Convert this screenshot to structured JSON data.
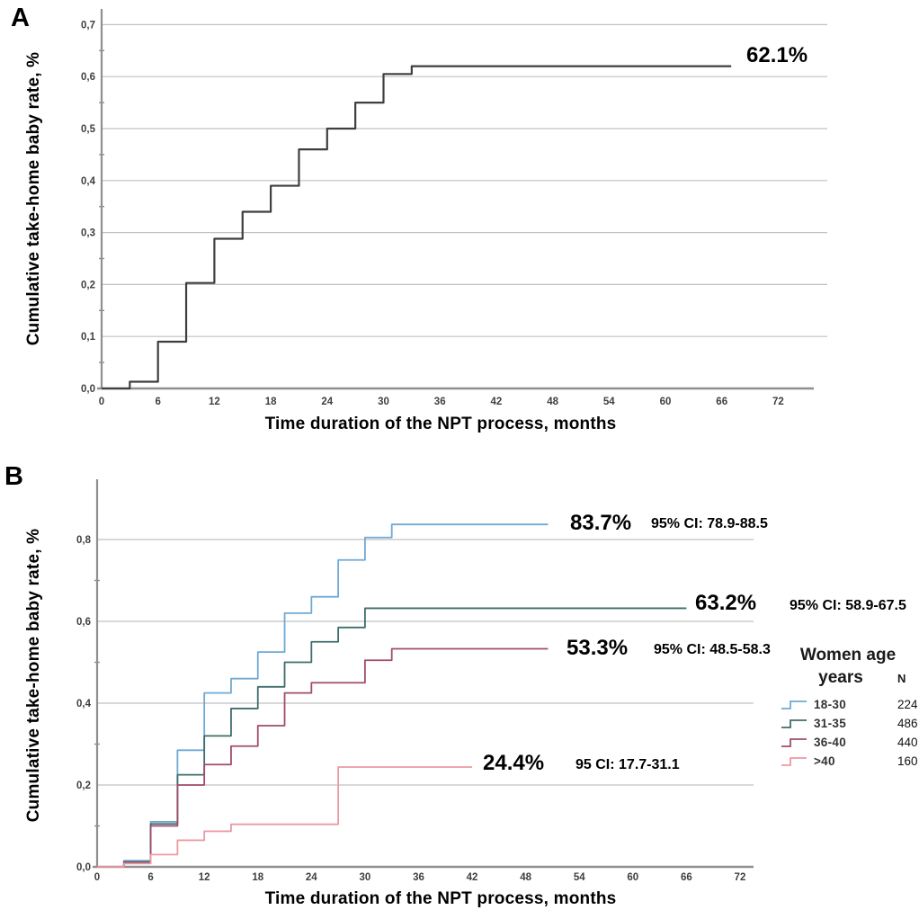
{
  "figure": {
    "panel_a_letter": "A",
    "panel_b_letter": "B"
  },
  "chart_data": [
    {
      "id": "A",
      "type": "line",
      "subtype": "kaplan-meier-step",
      "ylabel": "Cumulative take-home baby rate, %",
      "xlabel": "Time duration of the NPT process, months",
      "xlim": [
        0,
        76
      ],
      "ylim": [
        0,
        0.7
      ],
      "grid": true,
      "x_ticks": [
        0,
        6,
        12,
        18,
        24,
        30,
        36,
        42,
        48,
        54,
        60,
        66,
        72
      ],
      "y_tick_labels": [
        "0,0",
        "0,1",
        "0,2",
        "0,3",
        "0,4",
        "0,5",
        "0,6",
        "0,7"
      ],
      "series": [
        {
          "label": "",
          "color": "#3f3f3f",
          "end_month": 67,
          "points": [
            [
              0,
              0
            ],
            [
              3,
              0.013
            ],
            [
              6,
              0.09
            ],
            [
              9,
              0.203
            ],
            [
              12,
              0.288
            ],
            [
              15,
              0.34
            ],
            [
              18,
              0.39
            ],
            [
              21,
              0.46
            ],
            [
              24,
              0.5
            ],
            [
              27,
              0.55
            ],
            [
              30,
              0.605
            ],
            [
              33,
              0.62
            ]
          ]
        }
      ],
      "annotations": [
        {
          "text": "62.1%",
          "class": "pct"
        }
      ]
    },
    {
      "id": "B",
      "type": "line",
      "subtype": "kaplan-meier-step",
      "ylabel": "Cumulative take-home baby rate, %",
      "xlabel": "Time duration of the NPT process, months",
      "xlim": [
        0,
        76
      ],
      "ylim": [
        0,
        0.8
      ],
      "grid": true,
      "x_ticks": [
        0,
        6,
        12,
        18,
        24,
        30,
        36,
        42,
        48,
        54,
        60,
        66,
        72
      ],
      "y_tick_labels": [
        "0,0",
        "0,2",
        "0,4",
        "0,6",
        "0,8"
      ],
      "series": [
        {
          "label": "18-30",
          "color": "#6fa9d4",
          "end_month": 50.5,
          "points": [
            [
              0,
              0
            ],
            [
              3,
              0.015
            ],
            [
              6,
              0.11
            ],
            [
              9,
              0.285
            ],
            [
              12,
              0.425
            ],
            [
              15,
              0.46
            ],
            [
              18,
              0.525
            ],
            [
              21,
              0.62
            ],
            [
              24,
              0.66
            ],
            [
              27,
              0.75
            ],
            [
              30,
              0.805
            ],
            [
              33,
              0.837
            ]
          ]
        },
        {
          "label": "31-35",
          "color": "#3f6d69",
          "end_month": 66,
          "points": [
            [
              0,
              0
            ],
            [
              3,
              0.012
            ],
            [
              6,
              0.105
            ],
            [
              9,
              0.225
            ],
            [
              12,
              0.32
            ],
            [
              15,
              0.387
            ],
            [
              18,
              0.44
            ],
            [
              21,
              0.5
            ],
            [
              24,
              0.55
            ],
            [
              27,
              0.585
            ],
            [
              30,
              0.632
            ]
          ]
        },
        {
          "label": "36-40",
          "color": "#a14c6c",
          "end_month": 50.5,
          "points": [
            [
              0,
              0
            ],
            [
              3,
              0.01
            ],
            [
              6,
              0.1
            ],
            [
              9,
              0.2
            ],
            [
              12,
              0.25
            ],
            [
              15,
              0.295
            ],
            [
              18,
              0.345
            ],
            [
              21,
              0.425
            ],
            [
              24,
              0.45
            ],
            [
              30,
              0.505
            ],
            [
              33,
              0.533
            ]
          ]
        },
        {
          "label": ">40",
          "color": "#ec9aa3",
          "end_month": 42,
          "points": [
            [
              0,
              0
            ],
            [
              3,
              0.008
            ],
            [
              6,
              0.03
            ],
            [
              9,
              0.065
            ],
            [
              12,
              0.087
            ],
            [
              15,
              0.104
            ],
            [
              27,
              0.244
            ]
          ]
        }
      ],
      "annotations": [
        {
          "text": "83.7%",
          "class": "pct"
        },
        {
          "text": "95% CI: 78.9-88.5",
          "class": "ci"
        },
        {
          "text": "63.2%",
          "class": "pct"
        },
        {
          "text": "95% CI: 58.9-67.5",
          "class": "ci"
        },
        {
          "text": "53.3%",
          "class": "pct"
        },
        {
          "text": "95% CI: 48.5-58.3",
          "class": "ci"
        },
        {
          "text": "24.4%",
          "class": "pct"
        },
        {
          "text": "95 CI: 17.7-31.1",
          "class": "ci"
        }
      ],
      "legend": {
        "title_lines": [
          "Women age",
          "years"
        ],
        "n_header": "N",
        "entries": [
          {
            "label": "18-30",
            "n": "224",
            "color": "#6fa9d4"
          },
          {
            "label": "31-35",
            "n": "486",
            "color": "#3f6d69"
          },
          {
            "label": "36-40",
            "n": "440",
            "color": "#a14c6c"
          },
          {
            "label": ">40",
            "n": "160",
            "color": "#ec9aa3"
          }
        ]
      }
    }
  ]
}
